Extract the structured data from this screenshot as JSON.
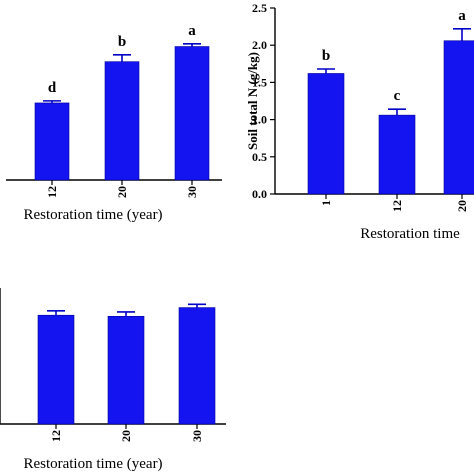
{
  "chart_data": [
    {
      "type": "bar",
      "categories": [
        "12",
        "20",
        "30"
      ],
      "values": [
        1.12,
        1.72,
        1.94
      ],
      "errors": [
        0.03,
        0.1,
        0.04
      ],
      "letters": [
        "d",
        "b",
        "a"
      ],
      "ylim": [
        0,
        2.5
      ],
      "xlabel": "Restoration time (year)",
      "ylabel": "",
      "grid": false,
      "color": "#1414f0"
    },
    {
      "type": "bar",
      "categories": [
        "1",
        "12",
        "20"
      ],
      "values": [
        1.62,
        1.06,
        2.06
      ],
      "errors": [
        0.06,
        0.08,
        0.16
      ],
      "letters": [
        "b",
        "c",
        "a"
      ],
      "yticks": [
        "0.0",
        "0.5",
        "1.0",
        "1.5",
        "2.0",
        "2.5"
      ],
      "ylim": [
        0,
        2.5
      ],
      "xlabel": "Restoration time",
      "ylabel": "Soil total N (g/kg)",
      "grid": false,
      "color": "#1414f0"
    },
    {
      "type": "bar",
      "categories": [
        "12",
        "20",
        "30"
      ],
      "values": [
        1.0,
        0.99,
        1.07
      ],
      "errors": [
        0.04,
        0.04,
        0.03
      ],
      "letters": [],
      "ylim": [
        0,
        1.25
      ],
      "xlabel": "Restoration time (year)",
      "ylabel": "",
      "grid": false,
      "color": "#1414f0"
    }
  ]
}
